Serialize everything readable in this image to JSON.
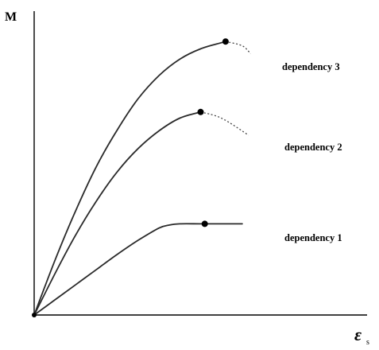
{
  "chart_data": {
    "type": "line",
    "ylabel": "M",
    "xlabel": "ε",
    "xlabel_subscript": "s",
    "grid": false,
    "series": [
      {
        "name": "dependency 1",
        "points": [
          [
            0,
            0
          ],
          [
            10,
            2.5
          ],
          [
            20,
            5
          ],
          [
            30,
            7.5
          ],
          [
            40,
            10
          ],
          [
            50,
            12.3
          ],
          [
            60,
            14.3
          ],
          [
            65,
            14.8
          ],
          [
            70,
            15
          ],
          [
            80,
            15
          ],
          [
            90,
            15
          ],
          [
            100,
            15
          ]
        ],
        "marker": [
          82,
          15
        ],
        "extension": []
      },
      {
        "name": "dependency 2",
        "points": [
          [
            0,
            0
          ],
          [
            10,
            6.8
          ],
          [
            20,
            13.2
          ],
          [
            30,
            18.8
          ],
          [
            40,
            23.6
          ],
          [
            50,
            27.4
          ],
          [
            60,
            30.3
          ],
          [
            70,
            32.4
          ],
          [
            80,
            33.4
          ]
        ],
        "marker": [
          80,
          33.4
        ],
        "extension": [
          [
            80,
            33.4
          ],
          [
            90,
            32.4
          ],
          [
            103,
            29.6
          ]
        ]
      },
      {
        "name": "dependency 3",
        "points": [
          [
            0,
            0
          ],
          [
            10,
            9
          ],
          [
            20,
            17.2
          ],
          [
            30,
            24.5
          ],
          [
            40,
            30.5
          ],
          [
            50,
            35.6
          ],
          [
            60,
            39.4
          ],
          [
            70,
            42.1
          ],
          [
            80,
            43.8
          ],
          [
            90,
            44.8
          ],
          [
            92,
            45
          ]
        ],
        "marker": [
          92,
          45
        ],
        "extension": [
          [
            92,
            45
          ],
          [
            100,
            44.3
          ],
          [
            104,
            43
          ]
        ]
      }
    ],
    "xlim": [
      0,
      160
    ],
    "ylim": [
      0,
      50
    ]
  }
}
